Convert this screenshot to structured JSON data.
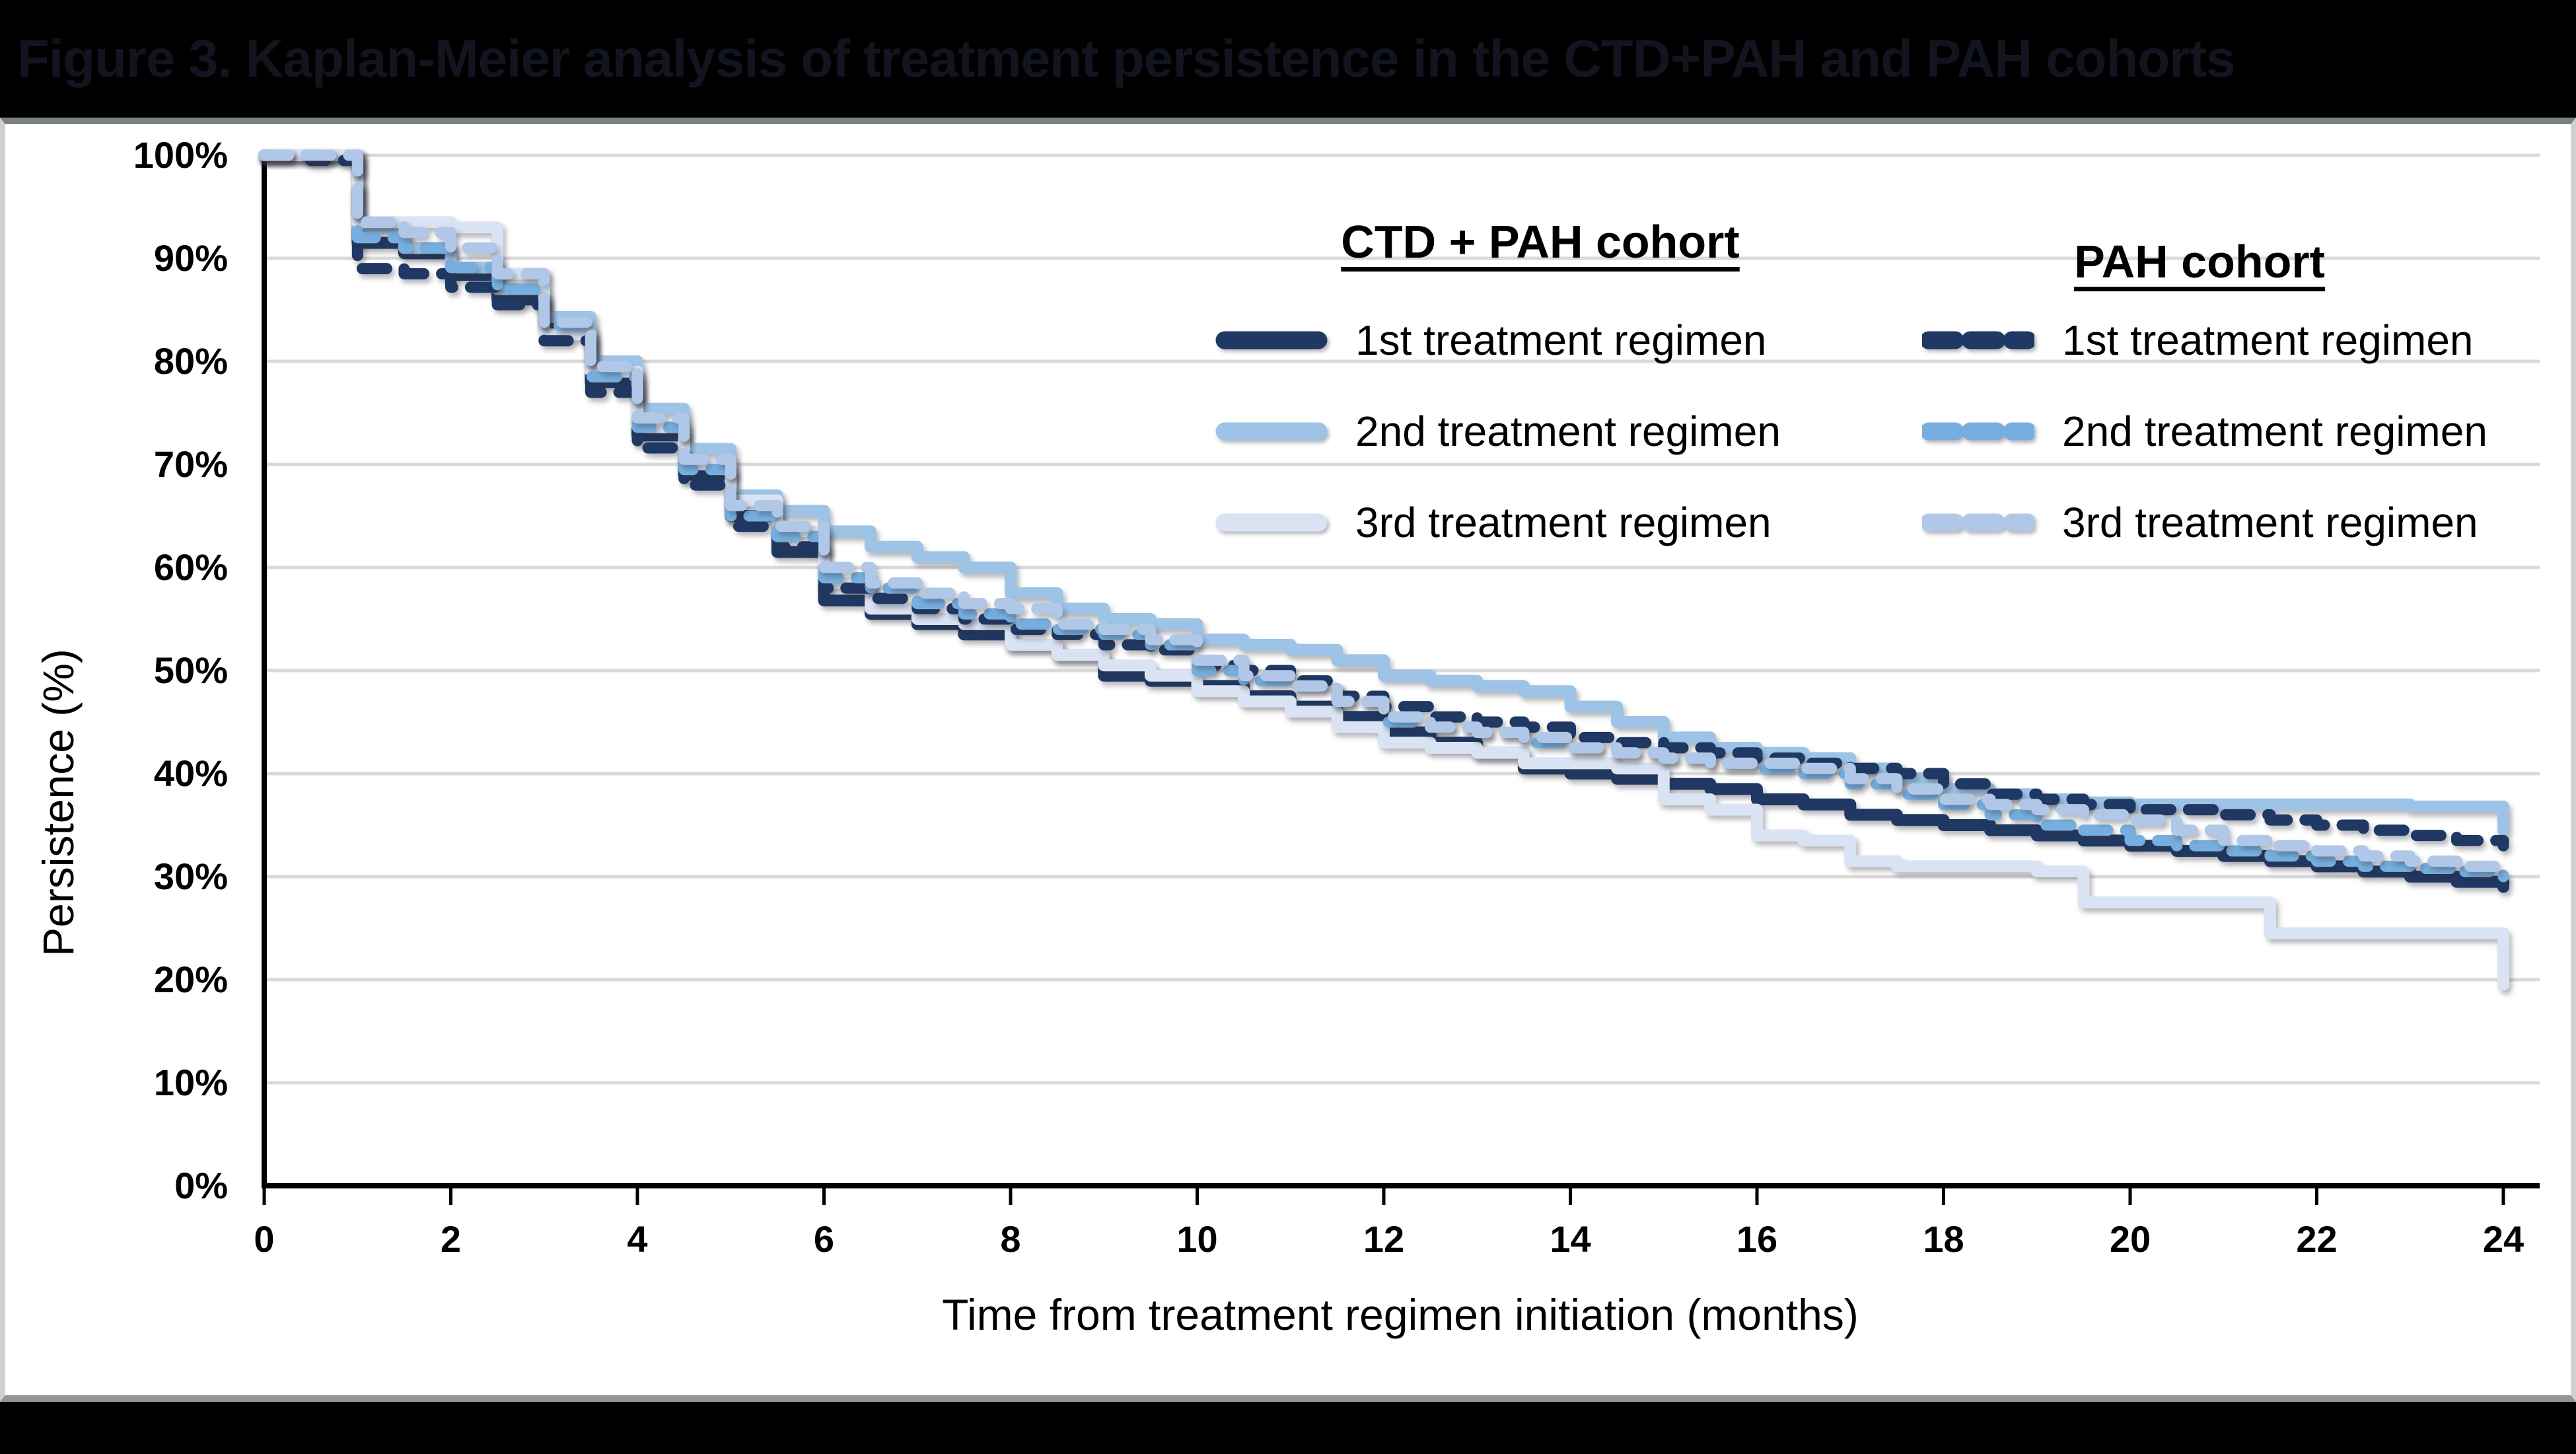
{
  "figure": {
    "title": "Figure 3. Kaplan-Meier analysis of treatment persistence in the CTD+PAH and PAH cohorts"
  },
  "chart_data": {
    "type": "line",
    "subtype": "kaplan-meier-step",
    "title": "Kaplan-Meier analysis of treatment persistence in the CTD+PAH and PAH cohorts",
    "xlabel": "Time from treatment regimen initiation (months)",
    "ylabel": "Persistence (%)",
    "xlim": [
      0,
      24
    ],
    "ylim": [
      0,
      100
    ],
    "grid": "horizontal",
    "x_step": 0.5,
    "x_ticks": [
      0,
      2,
      4,
      6,
      8,
      10,
      12,
      14,
      16,
      18,
      20,
      22,
      24
    ],
    "y_ticks": [
      0,
      10,
      20,
      30,
      40,
      50,
      60,
      70,
      80,
      90,
      100
    ],
    "y_tick_labels": [
      "0%",
      "10%",
      "20%",
      "30%",
      "40%",
      "50%",
      "60%",
      "70%",
      "80%",
      "90%",
      "100%"
    ],
    "colors": {
      "gridline": "#D9D9D9",
      "axis": "#000000",
      "series_1st": "#1F3864",
      "series_2nd_solid": "#9DC3E6",
      "series_3rd_solid": "#DAE3F3",
      "series_2nd_dashed": "#76AFDF",
      "series_3rd_dashed": "#B0C7E8"
    },
    "legend": {
      "position": "top-right-inside",
      "groups": [
        {
          "label": "CTD + PAH cohort",
          "style": "solid",
          "items": [
            "1st treatment regimen",
            "2nd treatment regimen",
            "3rd treatment regimen"
          ]
        },
        {
          "label": "PAH cohort",
          "style": "dashed",
          "items": [
            "1st treatment regimen",
            "2nd treatment regimen",
            "3rd treatment regimen"
          ]
        }
      ]
    },
    "series": [
      {
        "name": "CTD + PAH cohort - 1st treatment regimen",
        "cohort": "CTD + PAH cohort",
        "regimen": "1st treatment regimen",
        "style": "solid",
        "color": "#1F3864",
        "width": 18,
        "values": [
          100,
          100,
          91.5,
          90.5,
          88.4,
          86,
          83.2,
          78,
          72.8,
          69,
          65,
          61.5,
          56.8,
          55.5,
          54.5,
          53.5,
          52.5,
          51.5,
          49.5,
          49,
          48.5,
          47.5,
          46.5,
          45.5,
          44,
          43,
          42,
          40.5,
          40,
          39.5,
          39,
          38.5,
          37.5,
          37,
          36,
          35.5,
          35,
          34.5,
          34,
          33.5,
          33,
          32.5,
          32,
          31.5,
          31,
          30.5,
          30,
          29.5,
          29
        ]
      },
      {
        "name": "CTD + PAH cohort - 2nd treatment regimen",
        "cohort": "CTD + PAH cohort",
        "regimen": "2nd treatment regimen",
        "style": "solid",
        "color": "#9DC3E6",
        "width": 18,
        "values": [
          100,
          100,
          93,
          91,
          89.1,
          87,
          84.3,
          80,
          75.4,
          71.5,
          67,
          65.5,
          63.5,
          62,
          61,
          60,
          57.5,
          56,
          55,
          54.5,
          53,
          52.5,
          52,
          51,
          49.5,
          49,
          48.5,
          48,
          46.5,
          45,
          43.5,
          42.5,
          42,
          41.5,
          40.5,
          39.5,
          38.5,
          38,
          37.5,
          37.2,
          37,
          37,
          37,
          37,
          37,
          37,
          36.8,
          36.8,
          34.5
        ]
      },
      {
        "name": "CTD + PAH cohort - 3rd treatment regimen",
        "cohort": "CTD + PAH cohort",
        "regimen": "3rd treatment regimen",
        "style": "solid",
        "color": "#DAE3F3",
        "width": 18,
        "values": [
          100,
          100,
          93.5,
          93.5,
          93,
          88.5,
          82.6,
          79,
          73.6,
          70,
          66.5,
          63.5,
          58.5,
          56,
          55,
          54.5,
          52.5,
          51.5,
          50.5,
          49.5,
          48,
          47,
          46,
          44.5,
          43,
          42.5,
          42,
          41,
          41,
          40.5,
          37.5,
          36.5,
          34,
          33.5,
          31.5,
          31,
          31,
          31,
          30.5,
          27.5,
          27.5,
          27.5,
          27.5,
          24.5,
          24.5,
          24.5,
          24.5,
          24.5,
          19.5
        ]
      },
      {
        "name": "PAH cohort - 1st treatment regimen",
        "cohort": "PAH cohort",
        "regimen": "1st treatment regimen",
        "style": "dashed",
        "color": "#1F3864",
        "width": 17,
        "values": [
          100,
          99.5,
          89,
          88.5,
          87.2,
          85.5,
          82,
          77,
          71.6,
          68,
          64,
          62,
          58,
          57,
          56,
          55,
          54,
          53.5,
          52.5,
          52,
          50.5,
          50,
          49,
          47.5,
          46.5,
          45.5,
          45,
          44.5,
          43.5,
          43,
          42.5,
          42,
          41.5,
          41,
          40.5,
          40,
          39,
          38,
          37.5,
          37,
          36.5,
          36.5,
          36,
          35.5,
          35,
          34.5,
          34,
          33.5,
          33
        ]
      },
      {
        "name": "PAH cohort - 2nd treatment regimen",
        "cohort": "PAH cohort",
        "regimen": "2nd treatment regimen",
        "style": "dashed",
        "color": "#76AFDF",
        "width": 17,
        "values": [
          100,
          100,
          92,
          91,
          89.1,
          87,
          83.5,
          78.5,
          73.6,
          69.5,
          65,
          63,
          59,
          58,
          56.5,
          55.5,
          54.5,
          54,
          53.5,
          52.5,
          50,
          49,
          48.5,
          47,
          45,
          44.5,
          44,
          43,
          42.5,
          42,
          41.5,
          41,
          40.5,
          40,
          39,
          38,
          37,
          36,
          35,
          34.5,
          33.5,
          33,
          32.5,
          32,
          31.5,
          31,
          30.8,
          30.5,
          30
        ]
      },
      {
        "name": "PAH cohort - 3rd treatment regimen",
        "cohort": "PAH cohort",
        "regimen": "3rd treatment regimen",
        "style": "dashed",
        "color": "#B0C7E8",
        "width": 17,
        "values": [
          100,
          100,
          93.5,
          92.5,
          91,
          88.5,
          83.8,
          79.5,
          74.5,
          70.5,
          66,
          64,
          60,
          58.5,
          57.5,
          56.5,
          56,
          54.5,
          54,
          53,
          51,
          49.5,
          48.5,
          47,
          45.5,
          44.5,
          44,
          43.5,
          42.5,
          42,
          41.5,
          41,
          41,
          40.5,
          39.5,
          38.5,
          37.5,
          37,
          36.5,
          36,
          35.5,
          34.5,
          33.5,
          33,
          32.5,
          32,
          31.5,
          31,
          30.5
        ]
      }
    ]
  }
}
